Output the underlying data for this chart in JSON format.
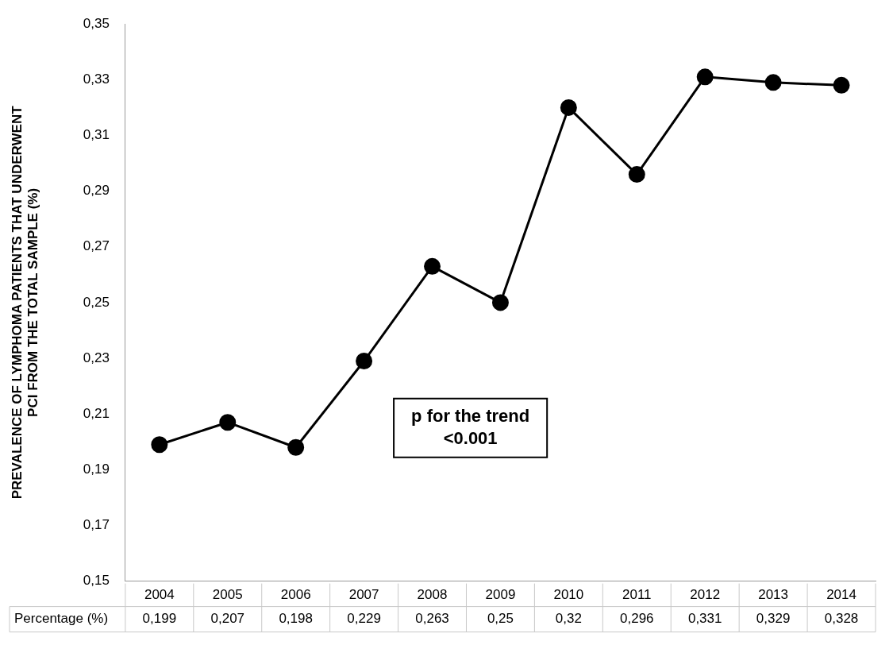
{
  "chart_data": {
    "type": "line",
    "ylabel": "PREVALENCE OF LYMPHOMA PATIENTS THAT UNDERWENT PCI FROM THE TOTAL SAMPLE (%)",
    "categories": [
      "2004",
      "2005",
      "2006",
      "2007",
      "2008",
      "2009",
      "2010",
      "2011",
      "2012",
      "2013",
      "2014"
    ],
    "series": [
      {
        "color": "#000000",
        "values": [
          0.199,
          0.207,
          0.198,
          0.229,
          0.263,
          0.25,
          0.32,
          0.296,
          0.331,
          0.329,
          0.328
        ],
        "value_labels": [
          "0,199",
          "0,207",
          "0,198",
          "0,229",
          "0,263",
          "0,25",
          "0,32",
          "0,296",
          "0,331",
          "0,329",
          "0,328"
        ]
      }
    ],
    "ylim": [
      0.15,
      0.35
    ],
    "yticks": [
      {
        "value": 0.15,
        "label": "0,15"
      },
      {
        "value": 0.17,
        "label": "0,17"
      },
      {
        "value": 0.19,
        "label": "0,19"
      },
      {
        "value": 0.21,
        "label": "0,21"
      },
      {
        "value": 0.23,
        "label": "0,23"
      },
      {
        "value": 0.25,
        "label": "0,25"
      },
      {
        "value": 0.27,
        "label": "0,27"
      },
      {
        "value": 0.29,
        "label": "0,29"
      },
      {
        "value": 0.31,
        "label": "0,31"
      },
      {
        "value": 0.33,
        "label": "0,33"
      },
      {
        "value": 0.35,
        "label": "0,35"
      }
    ],
    "annotations": [
      "p for the trend <0.001",
      "Percentage (%)"
    ],
    "grid": false,
    "legend": false,
    "marker": "circle",
    "line_style": "solid"
  }
}
